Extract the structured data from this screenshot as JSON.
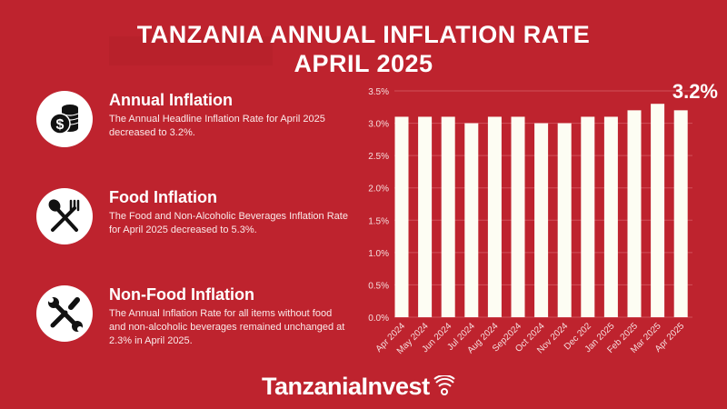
{
  "title_line1": "TANZANIA ANNUAL INFLATION RATE",
  "title_line2": "APRIL 2025",
  "items": [
    {
      "icon": "money-coins-icon",
      "heading": "Annual Inflation",
      "text": "The Annual Headline Inflation Rate for April 2025 decreased to 3.2%."
    },
    {
      "icon": "spoon-fork-icon",
      "heading": "Food Inflation",
      "text": "The Food and Non-Alcoholic Beverages Inflation Rate for April 2025 decreased to 5.3%."
    },
    {
      "icon": "wrench-screwdriver-icon",
      "heading": "Non-Food Inflation",
      "text": "The Annual Inflation Rate for all items without food and non-alcoholic beverages remained unchanged at 2.3% in April 2025."
    }
  ],
  "logo": "TanzaniaInvest",
  "colors": {
    "background": "#be232e",
    "bar": "#fdfdf3",
    "text": "#ffffff"
  },
  "chart_data": {
    "type": "bar",
    "categories": [
      "Apr 2024",
      "May 2024",
      "Jun 2024",
      "Jul 2024",
      "Aug 2024",
      "Sep2024",
      "Oct 2024",
      "Nov 2024",
      "Dec 202",
      "Jan 2025",
      "Feb 2025",
      "Mar 2025",
      "Apr 2025"
    ],
    "values": [
      3.1,
      3.1,
      3.1,
      3.0,
      3.1,
      3.1,
      3.0,
      3.0,
      3.1,
      3.1,
      3.2,
      3.3,
      3.2
    ],
    "ylim": [
      0,
      3.5
    ],
    "yticks": [
      "0.0%",
      "0.5%",
      "1.0%",
      "1.5%",
      "2.0%",
      "2.5%",
      "3.0%",
      "3.5%"
    ],
    "grid": true,
    "annotation": "3.2%"
  }
}
